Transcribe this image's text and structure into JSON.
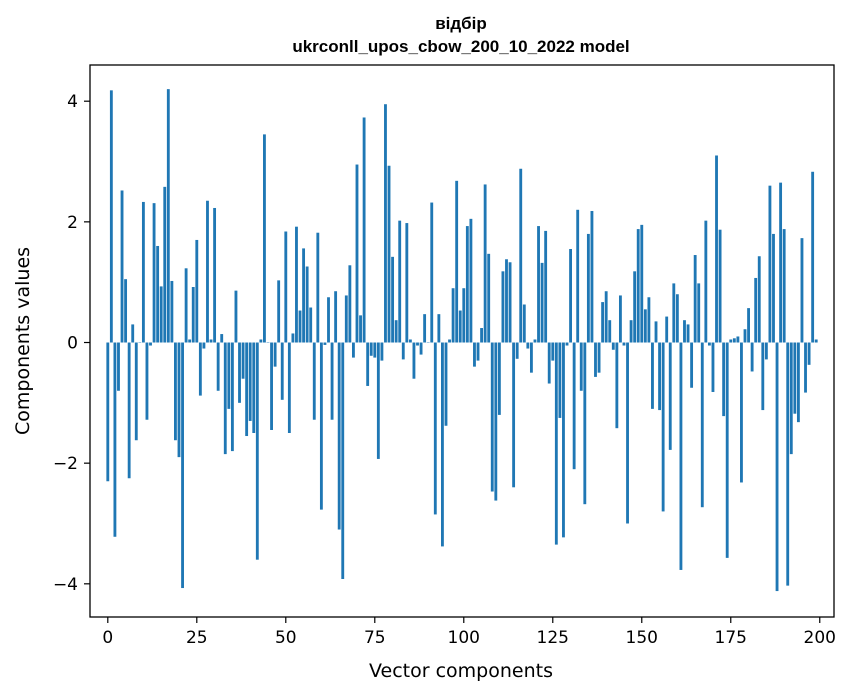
{
  "chart_data": {
    "type": "bar",
    "title": "відбір",
    "subtitle": "ukrconll_upos_cbow_200_10_2022 model",
    "xlabel": "Vector components",
    "ylabel": "Components values",
    "xlim": [
      -5,
      204
    ],
    "ylim": [
      -4.55,
      4.6
    ],
    "xticks": [
      0,
      25,
      50,
      75,
      100,
      125,
      150,
      175,
      200
    ],
    "yticks": [
      -4,
      -2,
      0,
      2,
      4
    ],
    "ytick_labels": [
      "−4",
      "−2",
      "0",
      "2",
      "4"
    ],
    "grid": false,
    "bar_color": "#1f77b4",
    "values": [
      -2.3,
      4.18,
      -3.22,
      -0.8,
      2.52,
      1.05,
      -2.25,
      0.3,
      -1.62,
      0,
      2.33,
      -1.28,
      -0.05,
      2.31,
      1.6,
      0.93,
      2.58,
      4.2,
      1.02,
      -1.62,
      -1.9,
      -4.07,
      1.23,
      0.05,
      0.92,
      1.7,
      -0.88,
      -0.1,
      2.35,
      0.05,
      2.23,
      -0.8,
      0.14,
      -1.85,
      -1.1,
      -1.8,
      0.86,
      -1.0,
      -0.6,
      -1.55,
      -1.3,
      -1.5,
      -3.6,
      0.05,
      3.45,
      0,
      -1.45,
      -0.4,
      1.03,
      -0.95,
      1.84,
      -1.5,
      0.15,
      1.92,
      0.53,
      1.56,
      1.26,
      0.58,
      -1.28,
      1.82,
      -2.77,
      -0.04,
      0.75,
      -1.28,
      0.85,
      -3.1,
      -3.92,
      0.78,
      1.28,
      -0.25,
      2.95,
      0.45,
      3.73,
      -0.72,
      -0.22,
      -0.25,
      -1.93,
      -0.3,
      3.95,
      2.93,
      1.42,
      0.37,
      2.02,
      -0.28,
      1.98,
      0.05,
      -0.6,
      -0.05,
      -0.2,
      0.47,
      0,
      2.32,
      -2.85,
      0.47,
      -3.38,
      -1.38,
      0.05,
      0.9,
      2.68,
      0.53,
      0.9,
      1.93,
      2.05,
      -0.4,
      -0.3,
      0.24,
      2.62,
      1.47,
      -2.47,
      -2.62,
      -1.2,
      1.18,
      1.38,
      1.33,
      -2.4,
      -0.27,
      2.88,
      0.63,
      -0.1,
      -0.5,
      0.05,
      1.93,
      1.32,
      1.85,
      -0.68,
      -0.3,
      -3.35,
      -1.25,
      -3.23,
      -0.05,
      1.55,
      -2.1,
      2.2,
      -0.8,
      -2.68,
      1.8,
      2.18,
      -0.57,
      -0.5,
      0.67,
      0.85,
      0.37,
      -0.12,
      -1.42,
      0.78,
      -0.05,
      -3.0,
      0.37,
      1.18,
      1.88,
      1.95,
      0.55,
      0.75,
      -1.1,
      0.35,
      -1.12,
      -2.8,
      0.43,
      -1.78,
      0.98,
      0.8,
      -3.77,
      0.37,
      0.3,
      -0.75,
      1.45,
      0.98,
      -2.73,
      2.02,
      -0.05,
      -0.82,
      3.1,
      1.87,
      -1.22,
      -3.57,
      0.05,
      0.07,
      0.1,
      -2.32,
      0.22,
      0.57,
      -0.48,
      1.07,
      1.43,
      -1.12,
      -0.28,
      2.6,
      1.8,
      -4.12,
      2.65,
      1.88,
      -4.03,
      -1.85,
      -1.18,
      -1.32,
      1.73,
      -0.83,
      -0.37,
      2.83,
      0.05
    ]
  }
}
